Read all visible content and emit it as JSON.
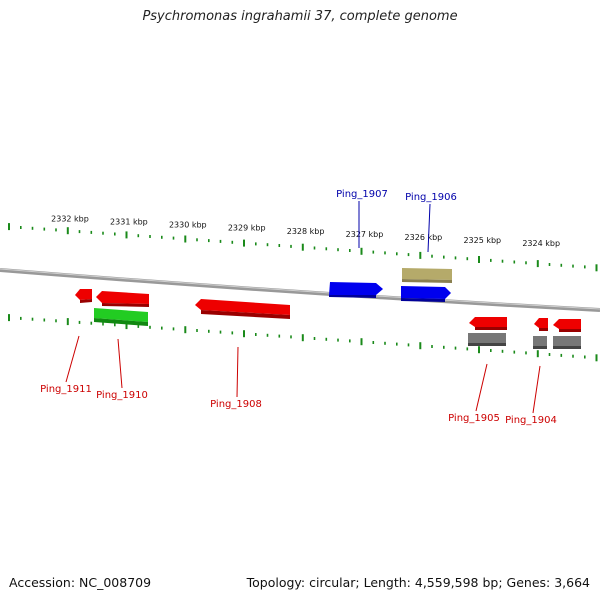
{
  "title": "Psychromonas ingrahamii 37, complete genome",
  "footer": {
    "accession": "Accession: NC_008709",
    "summary": "Topology: circular; Length: 4,559,598 bp; Genes: 3,664"
  },
  "colors": {
    "tick": "#1a8a1a",
    "backbone": "#888888",
    "forward_gene": "#0000ee",
    "reverse_gene": "#ee0000",
    "rna_gene": "#22cc22",
    "pseudo_gene": "#b5aa6a",
    "other_gene": "#777777",
    "forward_label": "#0000aa",
    "reverse_label": "#cc0000"
  },
  "scale_labels": [
    "2332 kbp",
    "2331 kbp",
    "2330 kbp",
    "2329 kbp",
    "2328 kbp",
    "2327 kbp",
    "2326 kbp",
    "2325 kbp",
    "2324 kbp"
  ],
  "gene_labels": {
    "top": [
      "Ping_1907",
      "Ping_1906"
    ],
    "bottom": [
      "Ping_1911",
      "Ping_1910",
      "Ping_1908",
      "Ping_1905",
      "Ping_1904"
    ]
  }
}
